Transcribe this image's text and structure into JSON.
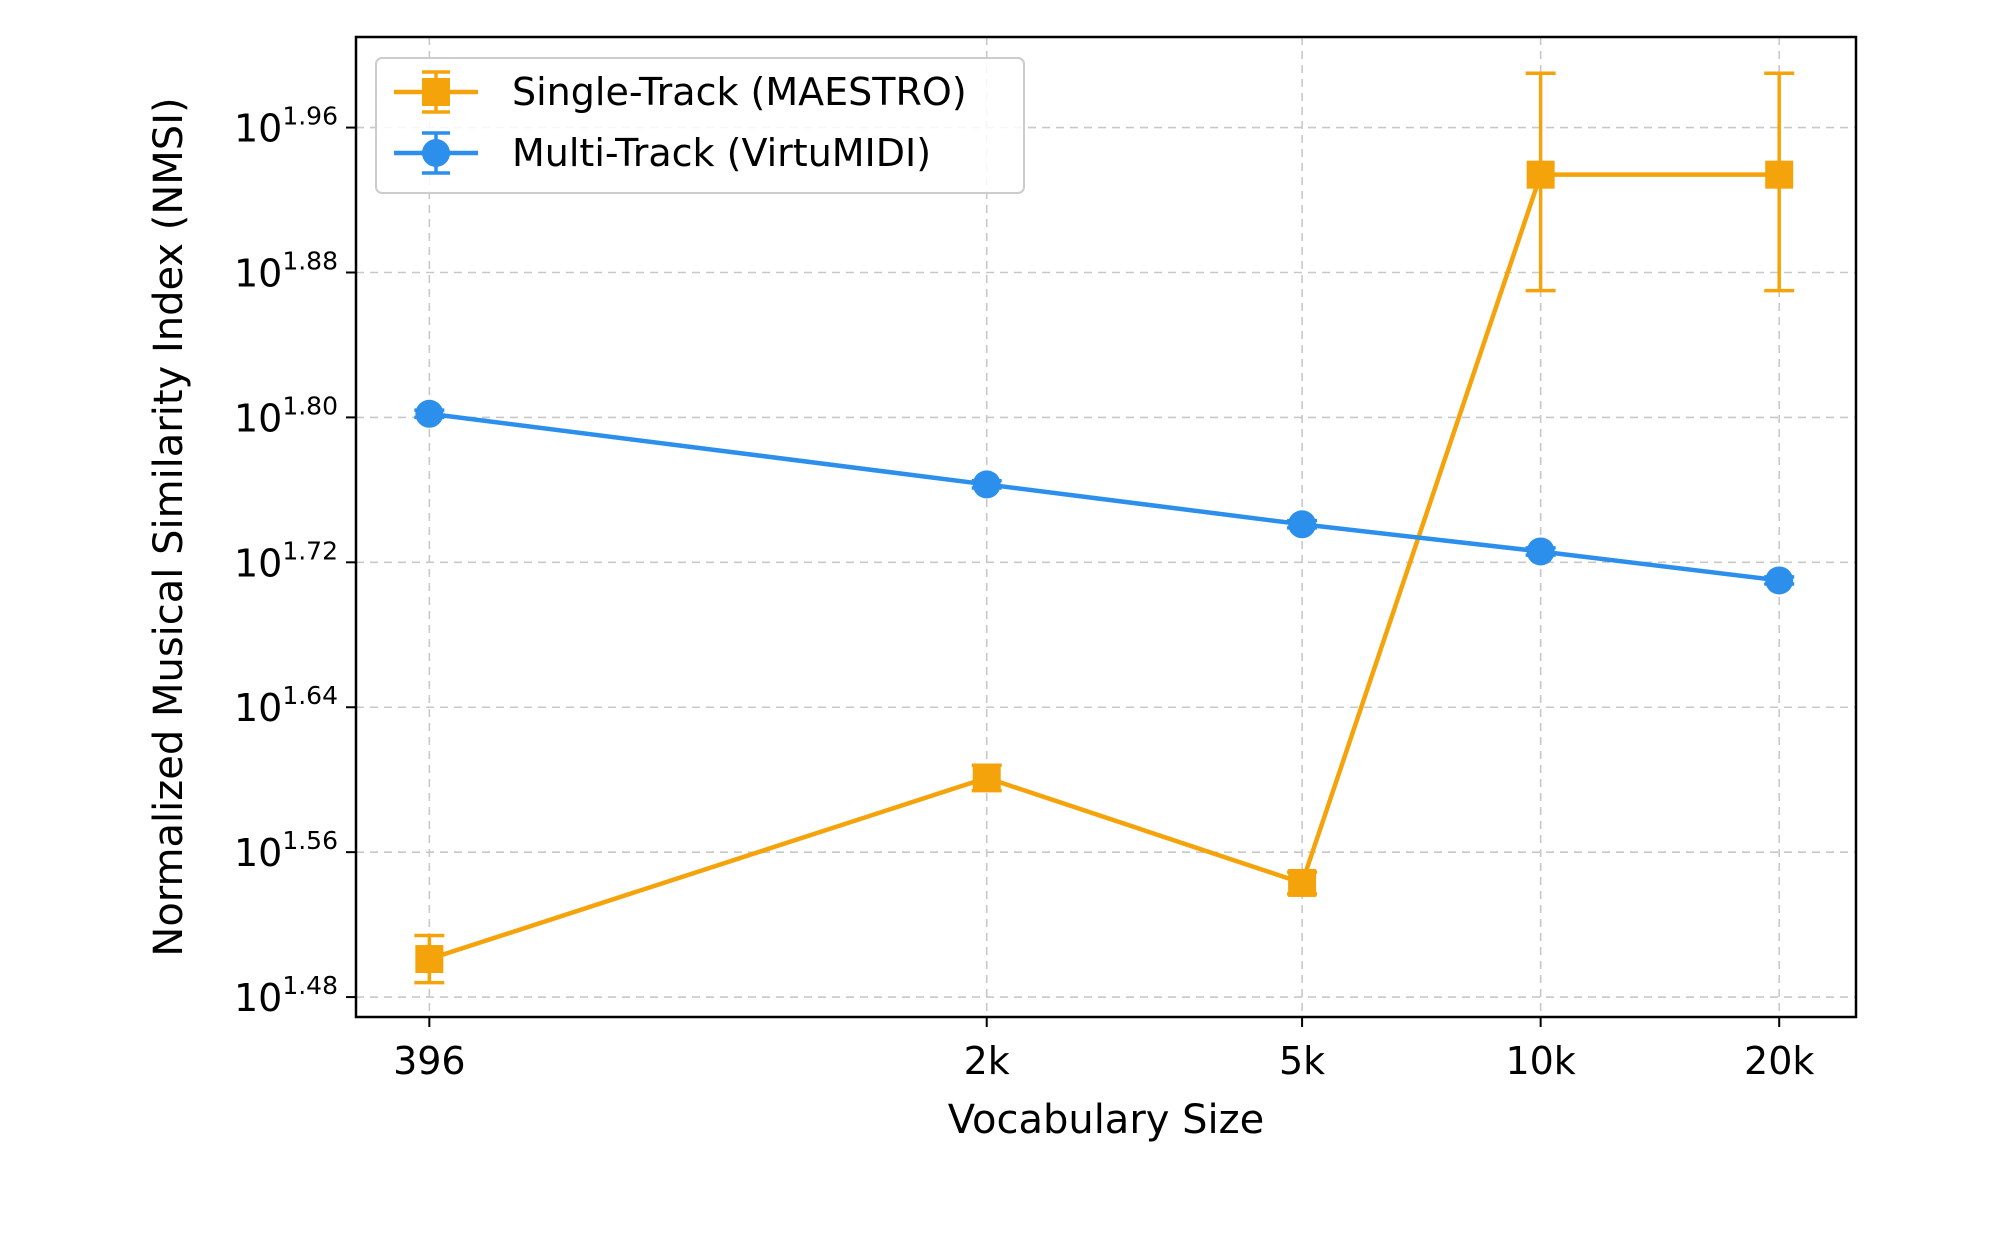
{
  "chart_data": {
    "type": "line",
    "title": "",
    "xlabel": "Vocabulary Size",
    "ylabel": "Normalized Musical Similarity Index (NMSI)",
    "yscale": "log10",
    "ylim_exponent": [
      1.469,
      2.01
    ],
    "grid": true,
    "legend_placement": "top-left",
    "categories": [
      "396",
      "2k",
      "5k",
      "10k",
      "20k"
    ],
    "x": [
      396,
      2000,
      5000,
      10000,
      20000
    ],
    "y_ticks": [
      {
        "base": "10",
        "exp": "1.48"
      },
      {
        "base": "10",
        "exp": "1.56"
      },
      {
        "base": "10",
        "exp": "1.64"
      },
      {
        "base": "10",
        "exp": "1.72"
      },
      {
        "base": "10",
        "exp": "1.80"
      },
      {
        "base": "10",
        "exp": "1.88"
      },
      {
        "base": "10",
        "exp": "1.96"
      }
    ],
    "series": [
      {
        "name": "Single-Track (MAESTRO)",
        "color": "#F5A30A",
        "marker": "square",
        "y_exponent": [
          1.501,
          1.601,
          1.543,
          1.934,
          1.934
        ],
        "err_low_exponent": [
          1.488,
          1.594,
          1.537,
          1.87,
          1.87
        ],
        "err_high_exponent": [
          1.514,
          1.608,
          1.549,
          1.99,
          1.99
        ]
      },
      {
        "name": "Multi-Track (VirtuMIDI)",
        "color": "#2B8FEB",
        "marker": "circle",
        "y_exponent": [
          1.802,
          1.763,
          1.741,
          1.726,
          1.71
        ],
        "err_low_exponent": [
          1.8,
          1.761,
          1.739,
          1.724,
          1.708
        ],
        "err_high_exponent": [
          1.804,
          1.765,
          1.743,
          1.728,
          1.712
        ]
      }
    ]
  }
}
